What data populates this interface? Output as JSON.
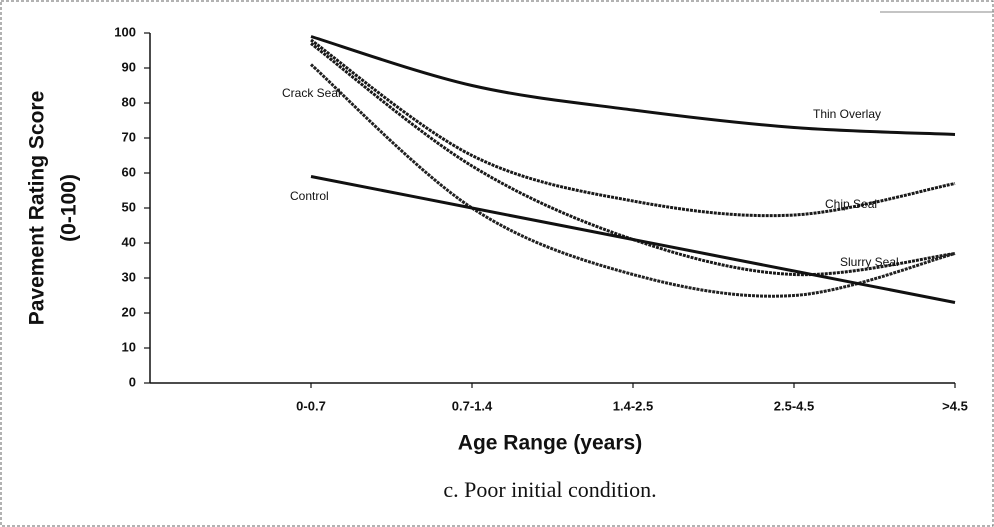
{
  "chart_data": {
    "type": "line",
    "caption": "c. Poor initial condition.",
    "x_label": "Age Range (years)",
    "y_label": [
      "Pavement Rating Score",
      "(0-100)"
    ],
    "categories": [
      "0-0.7",
      "0.7-1.4",
      "1.4-2.5",
      "2.5-4.5",
      ">4.5"
    ],
    "series": [
      {
        "name": "Thin Overlay",
        "color": "#111111",
        "values": [
          99,
          85,
          78,
          73,
          71
        ]
      },
      {
        "name": "Chip Seal",
        "color": "#1a1a1a",
        "values": [
          98,
          65,
          52,
          48,
          57
        ]
      },
      {
        "name": "Slurry Seal",
        "color": "#1a1a1a",
        "values": [
          97,
          62,
          41,
          31,
          37
        ]
      },
      {
        "name": "Crack Seal",
        "color": "#222222",
        "values": [
          91,
          50,
          31,
          25,
          37
        ]
      },
      {
        "name": "Control",
        "color": "#111111",
        "values": [
          59,
          50,
          41,
          32,
          23
        ]
      }
    ],
    "ylim": [
      0,
      100
    ],
    "yticks": [
      0,
      10,
      20,
      30,
      40,
      50,
      60,
      70,
      80,
      90,
      100
    ]
  }
}
